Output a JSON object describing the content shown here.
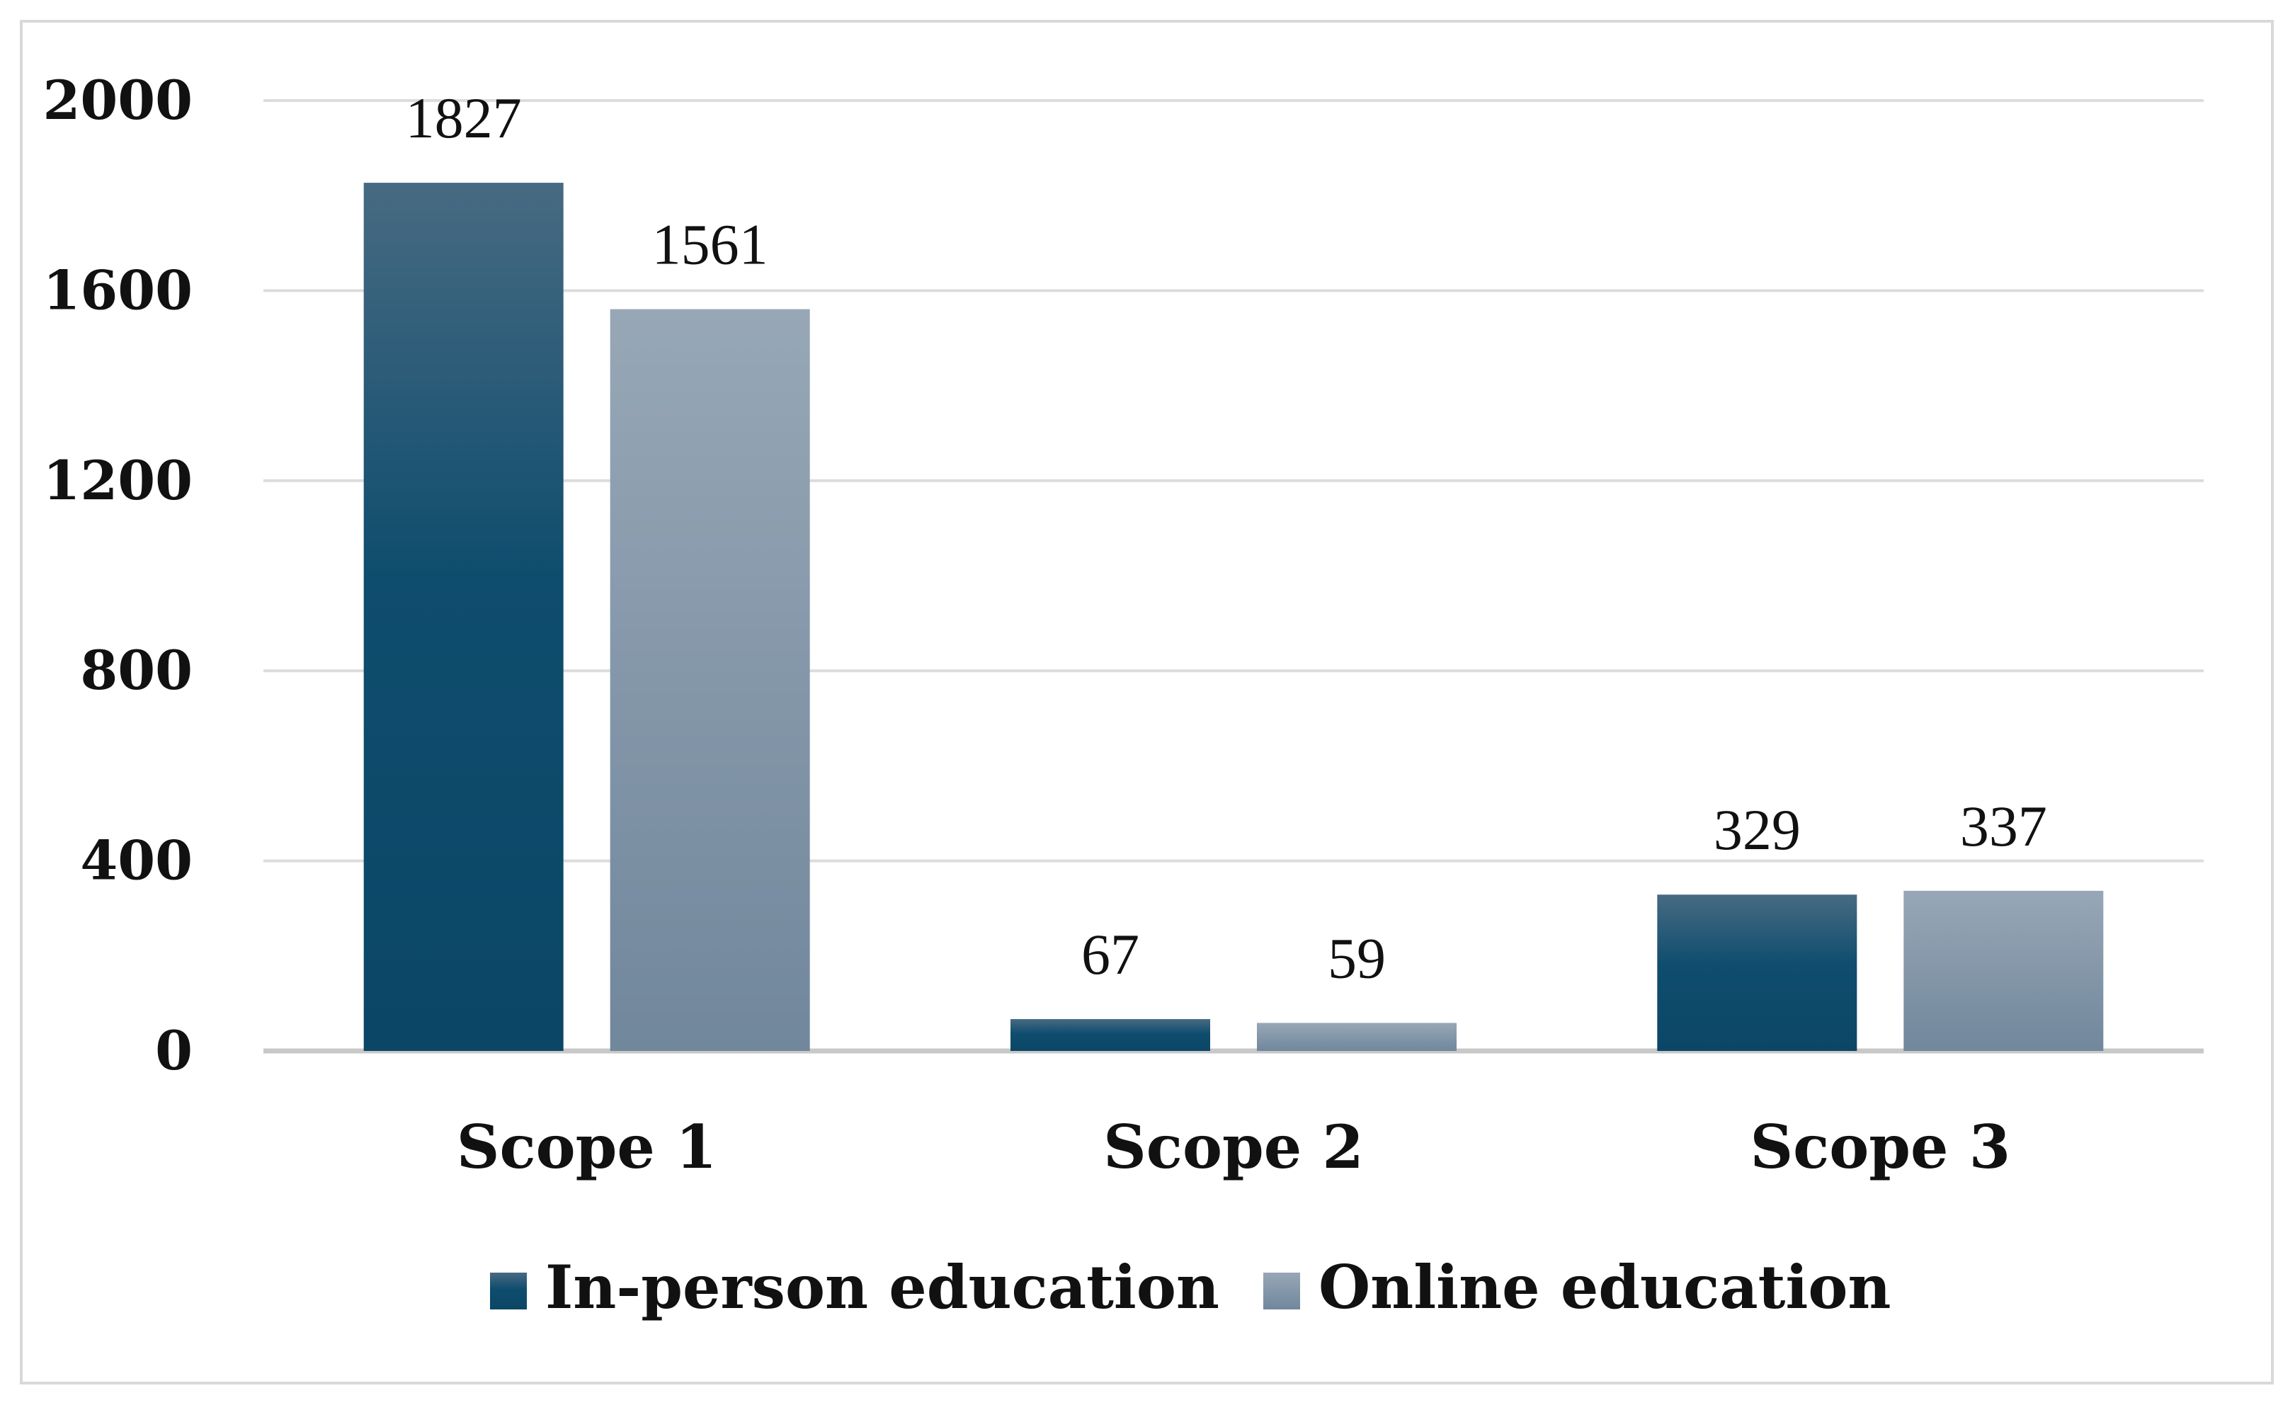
{
  "chart_data": {
    "type": "bar",
    "categories": [
      "Scope 1",
      "Scope 2",
      "Scope 3"
    ],
    "series": [
      {
        "name": "In-person education",
        "values": [
          1827,
          67,
          329
        ],
        "color": "#0f4d6e"
      },
      {
        "name": "Online education",
        "values": [
          1561,
          59,
          337
        ],
        "color": "#8197aa"
      }
    ],
    "ylim": [
      0,
      2000
    ],
    "yticks": [
      0,
      400,
      800,
      1200,
      1600,
      2000
    ],
    "grid": true,
    "legend_position": "bottom",
    "data_labels": true
  }
}
